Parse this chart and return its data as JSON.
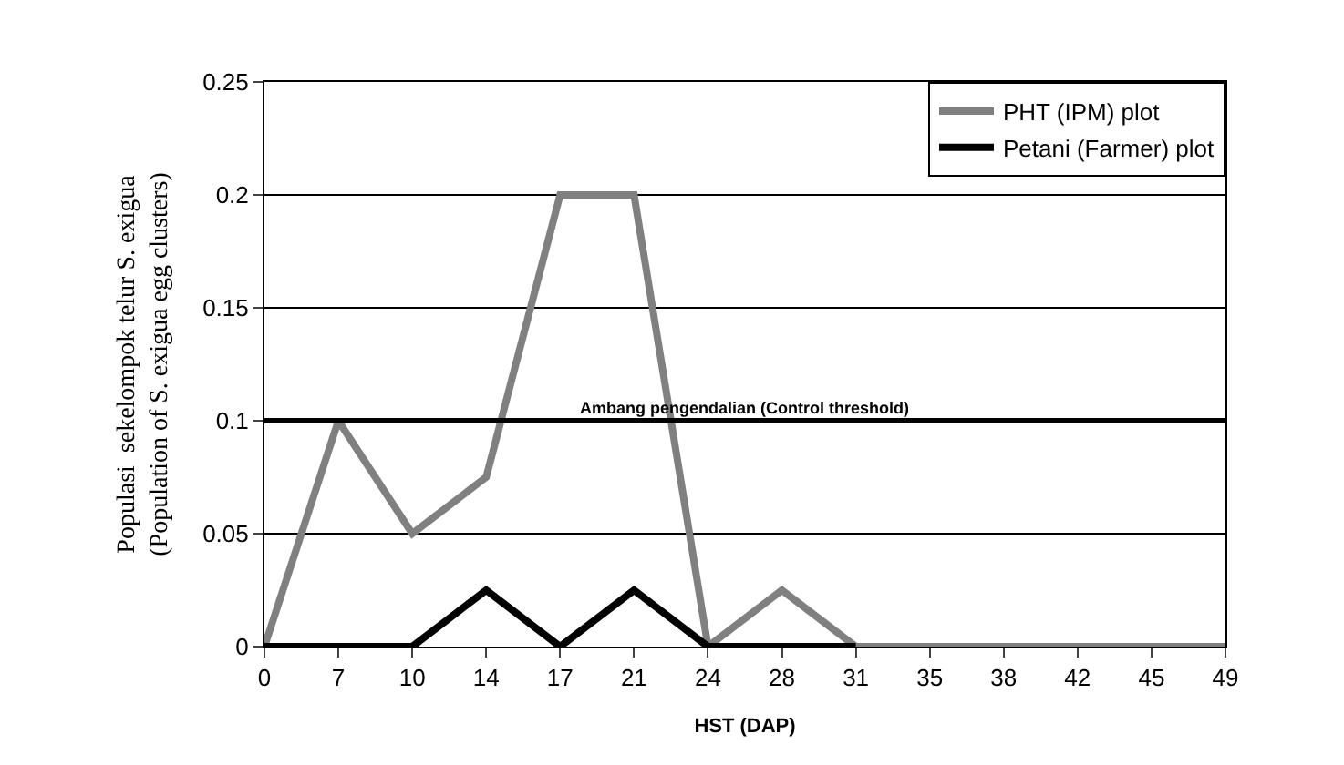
{
  "chart_data": {
    "type": "line",
    "xlabel": "HST (DAP)",
    "ylabel": "Populasi  sekelompok telur S. exigua\n(Population of S. exigua egg clusters)",
    "categories": [
      "0",
      "7",
      "10",
      "14",
      "17",
      "21",
      "24",
      "28",
      "31",
      "35",
      "38",
      "42",
      "45",
      "49"
    ],
    "series": [
      {
        "name": "PHT (IPM) plot",
        "color": "#808080",
        "values": [
          0,
          0.1,
          0.05,
          0.075,
          0.2,
          0.2,
          0,
          0.025,
          0,
          0,
          0,
          0,
          0,
          0
        ]
      },
      {
        "name": "Petani (Farmer) plot",
        "color": "#000000",
        "values": [
          0,
          0,
          0,
          0.025,
          0,
          0.025,
          0,
          0,
          0,
          null,
          null,
          null,
          null,
          null
        ]
      }
    ],
    "ylim": [
      0,
      0.25
    ],
    "yticks": [
      0,
      0.05,
      0.1,
      0.15,
      0.2,
      0.25
    ],
    "ref_lines": [
      {
        "axis": "y",
        "value": 0.1,
        "label": "Ambang pengendalian (Control threshold)",
        "color": "#000000"
      }
    ],
    "grid": "y",
    "legend": "top right",
    "marker": "none",
    "line_style": "solid"
  }
}
